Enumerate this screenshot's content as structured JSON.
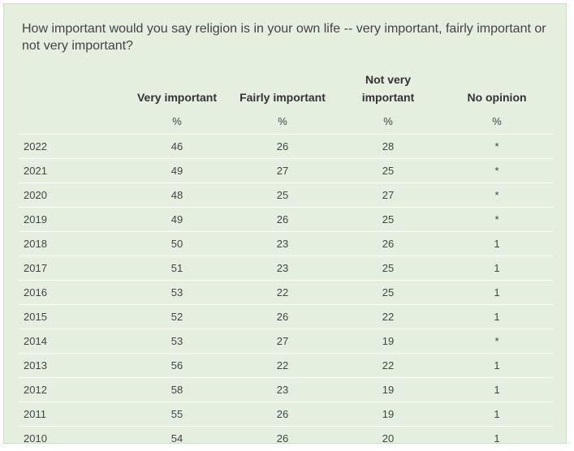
{
  "question": "How important would you say religion is in your own life -- very important, fairly important or not very important?",
  "headers": [
    "",
    "Very important",
    "Fairly important",
    "Not very important",
    "No opinion"
  ],
  "units": [
    "",
    "%",
    "%",
    "%",
    "%"
  ],
  "rows": [
    [
      "2022",
      "46",
      "26",
      "28",
      "*"
    ],
    [
      "2021",
      "49",
      "27",
      "25",
      "*"
    ],
    [
      "2020",
      "48",
      "25",
      "27",
      "*"
    ],
    [
      "2019",
      "49",
      "26",
      "25",
      "*"
    ],
    [
      "2018",
      "50",
      "23",
      "26",
      "1"
    ],
    [
      "2017",
      "51",
      "23",
      "25",
      "1"
    ],
    [
      "2016",
      "53",
      "22",
      "25",
      "1"
    ],
    [
      "2015",
      "52",
      "26",
      "22",
      "1"
    ],
    [
      "2014",
      "53",
      "27",
      "19",
      "*"
    ],
    [
      "2013",
      "56",
      "22",
      "22",
      "1"
    ],
    [
      "2012",
      "58",
      "23",
      "19",
      "1"
    ],
    [
      "2011",
      "55",
      "26",
      "19",
      "1"
    ],
    [
      "2010",
      "54",
      "26",
      "20",
      "1"
    ]
  ]
}
